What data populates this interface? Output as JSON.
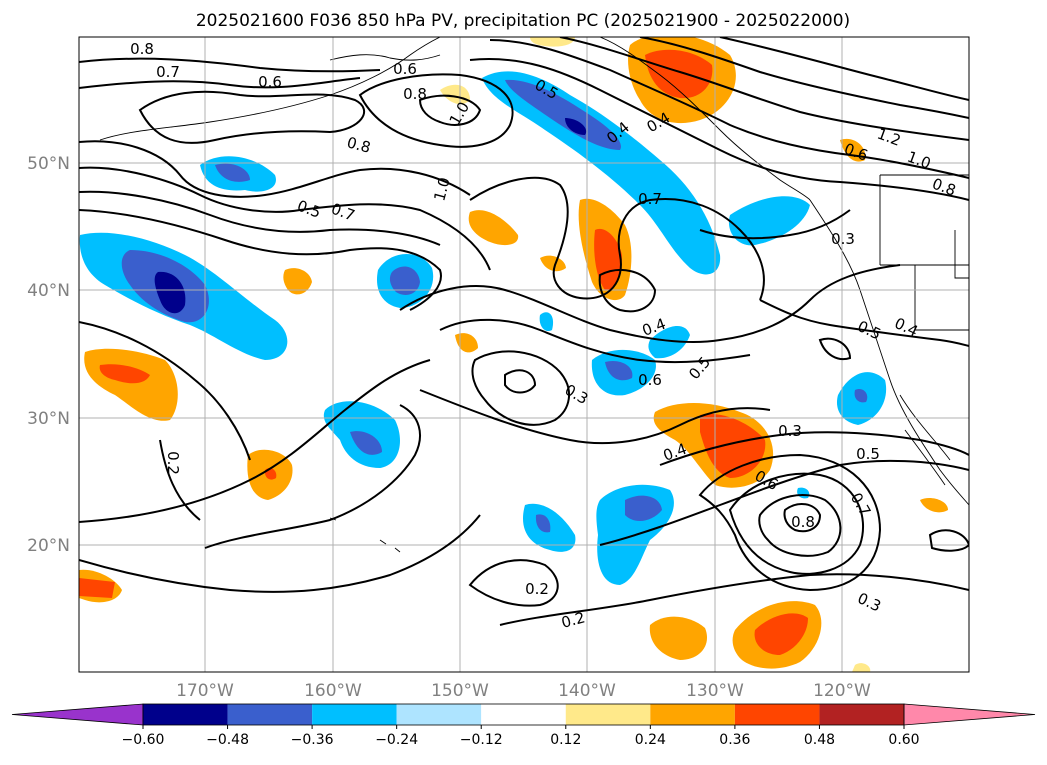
{
  "title": "2025021600 F036 850 hPa PV, precipitation PC (2025021900 - 2025022000)",
  "lon_ticks": [
    "170°W",
    "160°W",
    "150°W",
    "140°W",
    "130°W",
    "120°W"
  ],
  "lat_ticks": [
    "50°N",
    "40°N",
    "30°N",
    "20°N"
  ],
  "colorbar": {
    "levels": [
      "−0.60",
      "−0.48",
      "−0.36",
      "−0.24",
      "−0.12",
      "0.12",
      "0.24",
      "0.36",
      "0.48",
      "0.60"
    ],
    "colors": [
      "#9933cc",
      "#00008b",
      "#3a5fcd",
      "#00bfff",
      "#aee4ff",
      "#ffffff",
      "#ffe98a",
      "#ffa500",
      "#ff4500",
      "#b22222",
      "#ff88aa"
    ]
  },
  "contour_labels": [
    "0.8",
    "0.7",
    "0.6",
    "0.8",
    "0.6",
    "0.5",
    "1.0",
    "0.8",
    "1.0",
    "0.5",
    "0.7",
    "0.7",
    "0.4",
    "0.4",
    "1.2",
    "1.0",
    "0.8",
    "0.6",
    "0.3",
    "0.4",
    "0.5",
    "0.4",
    "0.6",
    "0.5",
    "0.3",
    "0.3",
    "0.4",
    "0.6",
    "0.5",
    "0.7",
    "0.8",
    "0.2",
    "0.2",
    "0.2",
    "0.3"
  ]
}
